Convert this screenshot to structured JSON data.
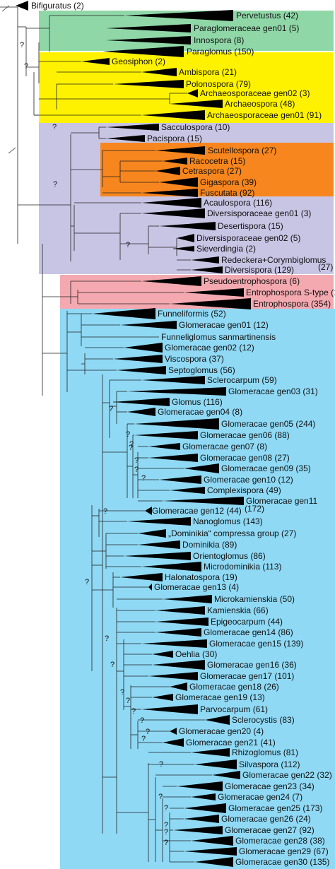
{
  "groups": [
    {
      "name": "green",
      "color": "#90d7a8"
    },
    {
      "name": "yellow",
      "color": "#fff200"
    },
    {
      "name": "purple",
      "color": "#c8c4e4"
    },
    {
      "name": "orange",
      "color": "#f7861e"
    },
    {
      "name": "pink",
      "color": "#f4a9b0"
    },
    {
      "name": "blue",
      "color": "#8fd9f5"
    }
  ],
  "support_mark": "?",
  "outgroup": {
    "label": "Bifiguratus (2)"
  },
  "taxa": [
    "Pervetustus (42)",
    "Paraglomeraceae gen01 (5)",
    "Innospora (8)",
    "Paraglomus (150)",
    "Geosiphon (2)",
    "Ambispora (21)",
    "Polonospora (79)",
    "Archaeosporaceae gen02 (3)",
    "Archaeospora (48)",
    "Archaeosporaceae gen01 (91)",
    "Sacculospora (10)",
    "Pacispora (15)",
    "Scutellospora (27)",
    "Racocetra (15)",
    "Cetraspora (27)",
    "Gigaspora (39)",
    "Fuscutata (92)",
    "Acaulospora (116)",
    "Diversisporaceae gen01 (3)",
    "Desertispora (15)",
    "Diversisporaceae gen02 (5)",
    "Sieverdingia (2)",
    "Redeckera+Corymbiglomus",
    "(27)",
    "Diversispora (129)",
    "Pseudoentrophospora (6)",
    "Entrophospora S-type (17)",
    "Entrophospora (354)",
    "Funneliformis (52)",
    "Glomeracae gen01 (12)",
    "Funneliglomus sanmartinensis",
    "Glomeracae gen02 (12)",
    "Viscospora (37)",
    "Septoglomus (56)",
    "Sclerocarpum (59)",
    "Glomeracae gen03 (31)",
    "Glomus (116)",
    "Glomeracae gen04 (8)",
    "Glomeracae gen05 (244)",
    "Glomeracae gen06 (88)",
    "Glomeracae gen07 (8)",
    "Glomeracae gen08 (27)",
    "Glomeracae gen09 (35)",
    "Glomeracae gen10 (12)",
    "Complexispora (49)",
    "Glomeracae gen11",
    "(172)",
    "Glomeracae gen12 (44)",
    "Nanoglomus (143)",
    "„Dominikia“ compressa group (27)",
    "Dominikia (89)",
    "Orientoglomus (86)",
    "Microdominikia (113)",
    "Halonatospora (19)",
    "Glomeracae gen13 (4)",
    "Microkamienskia (50)",
    "Kamienskia (66)",
    "Epigeocarpum (44)",
    "Glomeracae gen14 (86)",
    "Glomeracae gen15 (139)",
    "Oehlia (30)",
    "Glomeracae gen16 (36)",
    "Glomeracae gen17 (101)",
    "Glomeracae gen18 (26)",
    "Glomeracae gen19 (13)",
    "Parvocarpum (61)",
    "Sclerocystis (83)",
    "Glomeracae gen20 (4)",
    "Glomeracae gen21 (41)",
    "Rhizoglomus (81)",
    "Silvaspora (112)",
    "Glomeracae gen22 (32)",
    "Glomeracae gen23 (34)",
    "Glomeracae gen24 (7)",
    "Glomeracae gen25 (173)",
    "Glomeracae gen26 (24)",
    "Glomeracae gen27 (92)",
    "Glomeracae gen28 (38)",
    "Glomeracae gen29 (67)",
    "Glomeracae gen30 (135)"
  ]
}
